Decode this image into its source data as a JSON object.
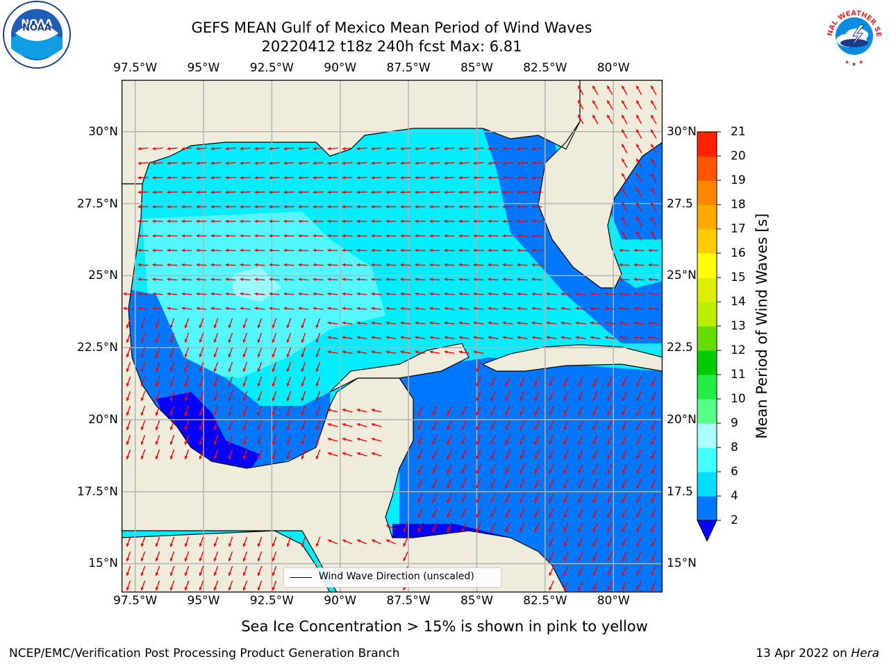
{
  "title_line1": "GEFS MEAN Gulf of Mexico Mean Period of Wind Waves",
  "title_line2": "20220412 t18z 240h fcst   Max: 6.81",
  "logos": {
    "left": {
      "name": "noaa-logo",
      "text": "NOAA",
      "ring_text": "NATIONAL OCEANIC AND ATMOSPHERIC ADMINISTRATION · U.S. DEPARTMENT OF COMMERCE"
    },
    "right": {
      "name": "nws-logo",
      "ring_text": "NATIONAL WEATHER SERVICE"
    }
  },
  "map": {
    "lon_ticks": [
      "97.5°W",
      "95°W",
      "92.5°W",
      "90°W",
      "87.5°W",
      "85°W",
      "82.5°W",
      "80°W"
    ],
    "lon_values": [
      -97.5,
      -95,
      -92.5,
      -90,
      -87.5,
      -85,
      -82.5,
      -80
    ],
    "lat_ticks_left": [
      "30°N",
      "27.5°N",
      "25°N",
      "22.5°N",
      "20°N",
      "17.5°N",
      "15°N"
    ],
    "lat_ticks_right": [
      "30°N",
      "27.5",
      "25°N",
      "22.5",
      "20°N",
      "17.5",
      "15°N"
    ],
    "lat_values": [
      30,
      27.5,
      25,
      22.5,
      20,
      17.5,
      15
    ],
    "extent": {
      "lon_min": -98,
      "lon_max": -78.2,
      "lat_min": 14,
      "lat_max": 31.8
    },
    "land_color": "#efecdc",
    "legend_label": "Wind Wave Direction (unscaled)",
    "vector_color": "#ff0000"
  },
  "colorbar": {
    "label": "Mean Period of Wind Waves [s]",
    "ticks": [
      "2",
      "4",
      "6",
      "8",
      "9",
      "10",
      "11",
      "12",
      "13",
      "14",
      "15",
      "16",
      "17",
      "18",
      "19",
      "20",
      "21"
    ],
    "colors": [
      "#0077ff",
      "#00ddff",
      "#44ffff",
      "#aaffff",
      "#55ff88",
      "#22ee44",
      "#00cc00",
      "#66dd00",
      "#bbee00",
      "#ddee00",
      "#ffff00",
      "#ffcc00",
      "#ffaa00",
      "#ff8800",
      "#ff5500",
      "#ff2200"
    ],
    "under_color": "#0000ff"
  },
  "footer": {
    "caption": "Sea Ice Concentration > 15% is shown in pink to yellow",
    "credit": "NCEP/EMC/Verification Post Processing Product Generation Branch",
    "date": "13 Apr 2022 on",
    "machine": "Hera"
  }
}
